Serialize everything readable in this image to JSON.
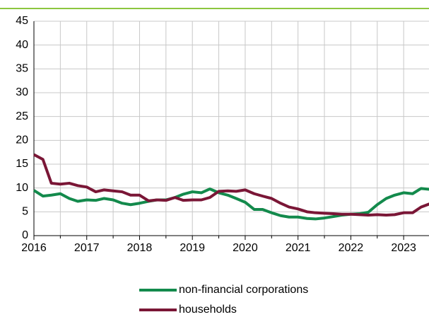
{
  "chart_data": {
    "type": "line",
    "x": [
      2016.0,
      2016.17,
      2016.33,
      2016.5,
      2016.67,
      2016.83,
      2017.0,
      2017.17,
      2017.33,
      2017.5,
      2017.67,
      2017.83,
      2018.0,
      2018.17,
      2018.33,
      2018.5,
      2018.67,
      2018.83,
      2019.0,
      2019.17,
      2019.33,
      2019.5,
      2019.67,
      2019.83,
      2020.0,
      2020.17,
      2020.33,
      2020.5,
      2020.67,
      2020.83,
      2021.0,
      2021.17,
      2021.33,
      2021.5,
      2021.67,
      2021.83,
      2022.0,
      2022.17,
      2022.33,
      2022.5,
      2022.67,
      2022.83,
      2023.0,
      2023.17,
      2023.33,
      2023.5
    ],
    "series": [
      {
        "name": "non-financial corporations",
        "color": "#138a4c",
        "values": [
          9.5,
          8.3,
          8.5,
          8.8,
          7.8,
          7.2,
          7.5,
          7.4,
          7.8,
          7.5,
          6.8,
          6.5,
          6.8,
          7.2,
          7.5,
          7.5,
          8.0,
          8.7,
          9.2,
          9.0,
          9.8,
          9.0,
          8.5,
          7.8,
          7.0,
          5.5,
          5.5,
          4.8,
          4.2,
          3.9,
          3.9,
          3.6,
          3.5,
          3.7,
          4.0,
          4.3,
          4.5,
          4.6,
          4.9,
          6.5,
          7.8,
          8.5,
          9.0,
          8.8,
          9.9,
          9.7
        ]
      },
      {
        "name": "households",
        "color": "#7a1636",
        "values": [
          17.0,
          16.0,
          11.0,
          10.8,
          11.0,
          10.5,
          10.2,
          9.2,
          9.6,
          9.4,
          9.2,
          8.5,
          8.5,
          7.3,
          7.5,
          7.4,
          8.0,
          7.4,
          7.5,
          7.5,
          8.0,
          9.3,
          9.4,
          9.3,
          9.6,
          8.8,
          8.3,
          7.8,
          6.8,
          6.0,
          5.6,
          5.0,
          4.8,
          4.7,
          4.6,
          4.5,
          4.5,
          4.4,
          4.3,
          4.4,
          4.3,
          4.4,
          4.8,
          4.8,
          6.0,
          6.7
        ]
      }
    ],
    "xlim": [
      2016,
      2023.48
    ],
    "xticks": [
      2016,
      2017,
      2018,
      2019,
      2020,
      2021,
      2022,
      2023
    ],
    "xminor": [
      2016.5,
      2017.5,
      2018.5,
      2019.5,
      2020.5,
      2021.5,
      2022.5
    ],
    "ylim": [
      0,
      45
    ],
    "yticks": [
      0,
      5,
      10,
      15,
      20,
      25,
      30,
      35,
      40,
      45
    ],
    "grid": true
  }
}
